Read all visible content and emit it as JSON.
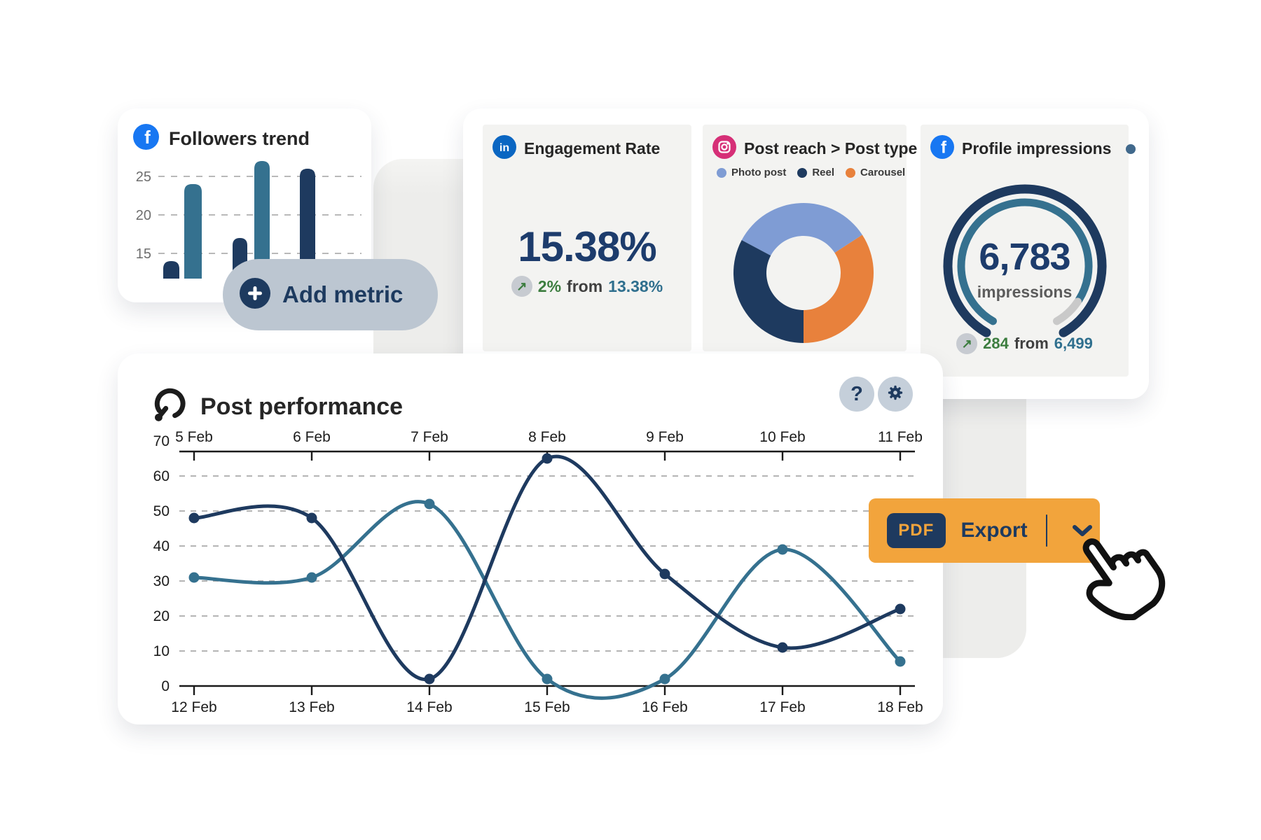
{
  "colors": {
    "navy": "#1e3a5f",
    "teal": "#35718f",
    "light_blue": "#7f9cd4",
    "orange": "#e8813c",
    "export_orange": "#f2a43c",
    "green": "#3c7d3f",
    "teal_text": "#2f6f8e",
    "panel_bg": "#f3f3f1",
    "bg_strip": "#ededeb",
    "pill_bg": "#bcc6d1",
    "facebook_blue": "#1877f2",
    "linkedin_blue": "#0a66c2",
    "instagram_pink": "#d62f77",
    "gauge_rest_gray": "#c9c9c9"
  },
  "followers_card": {
    "title": "Followers trend",
    "platform": "Facebook",
    "chart": {
      "yticks": [
        25,
        20,
        15
      ],
      "bars": [
        {
          "value": 14,
          "color": "#1e3a5f"
        },
        {
          "value": 24,
          "color": "#35718f"
        },
        {
          "value": 17,
          "color": "#1e3a5f"
        },
        {
          "value": 27,
          "color": "#35718f"
        },
        {
          "value": 26,
          "color": "#1e3a5f"
        }
      ]
    }
  },
  "add_metric_button": {
    "label": "Add metric"
  },
  "engagement_card": {
    "title": "Engagement Rate",
    "platform": "LinkedIn",
    "value": "15.38%",
    "change": {
      "arrow": "↗",
      "delta": "2%",
      "joiner": "from",
      "previous": "13.38%"
    }
  },
  "post_reach_card": {
    "title": "Post reach > Post type",
    "platform": "Instagram",
    "legend": [
      {
        "label": "Photo post",
        "color": "#7f9cd4"
      },
      {
        "label": "Reel",
        "color": "#1e3a5f"
      },
      {
        "label": "Carousel",
        "color": "#e8813c"
      }
    ],
    "donut": {
      "segments": [
        {
          "label": "Photo post",
          "color": "#7f9cd4",
          "start": -62,
          "end": 57
        },
        {
          "label": "Carousel",
          "color": "#e8813c",
          "start": 57,
          "end": 180
        },
        {
          "label": "Reel",
          "color": "#1e3a5f",
          "start": 180,
          "end": 298
        }
      ]
    }
  },
  "impressions_card": {
    "title": "Profile impressions",
    "platform": "Facebook",
    "value": "6,783",
    "unit": "impressions",
    "change": {
      "arrow": "↗",
      "delta": "284",
      "joiner": "from",
      "previous": "6,499"
    },
    "gauge": {
      "start": 210,
      "sweep": 300,
      "inner_filled_sweep": 272,
      "outer_color": "#1e3a5f",
      "inner_color": "#35718f",
      "rest_color": "#c9c9c9"
    }
  },
  "post_performance": {
    "title": "Post performance",
    "help_label": "?",
    "top_axis": [
      "5 Feb",
      "6 Feb",
      "7 Feb",
      "8 Feb",
      "9 Feb",
      "10 Feb",
      "11 Feb"
    ],
    "bottom_axis": [
      "12 Feb",
      "13 Feb",
      "14 Feb",
      "15 Feb",
      "16 Feb",
      "17 Feb",
      "18 Feb"
    ],
    "chart": {
      "yticks": [
        0,
        10,
        20,
        30,
        40,
        50,
        60,
        70
      ],
      "series": [
        {
          "name": "series-teal",
          "color": "#35718f",
          "values": [
            31,
            31,
            52,
            2,
            2,
            39,
            7
          ]
        },
        {
          "name": "series-navy",
          "color": "#1e3a5f",
          "values": [
            48,
            48,
            2,
            65,
            32,
            11,
            22
          ]
        }
      ]
    }
  },
  "export_button": {
    "badge": "PDF",
    "label": "Export"
  },
  "chart_data": [
    {
      "id": "followers_trend",
      "type": "bar",
      "title": "Followers trend",
      "platform": "Facebook",
      "categories": [
        "",
        "",
        "",
        "",
        ""
      ],
      "values": [
        14,
        24,
        17,
        27,
        26
      ],
      "bar_colors": [
        "#1e3a5f",
        "#35718f",
        "#1e3a5f",
        "#35718f",
        "#1e3a5f"
      ],
      "yticks": [
        15,
        20,
        25
      ],
      "grid": "dashed-horizontal",
      "xlabel": "",
      "ylabel": ""
    },
    {
      "id": "post_reach_by_post_type",
      "type": "pie",
      "title": "Post reach > Post type",
      "platform": "Instagram",
      "labels": [
        "Photo post",
        "Reel",
        "Carousel"
      ],
      "values_pct": [
        33,
        33,
        34
      ],
      "colors": [
        "#7f9cd4",
        "#1e3a5f",
        "#e8813c"
      ],
      "donut": true,
      "legend_position": "top"
    },
    {
      "id": "profile_impressions",
      "type": "gauge",
      "title": "Profile impressions",
      "platform": "Facebook",
      "value": 6783,
      "unit": "impressions",
      "previous": 6499,
      "delta": 284,
      "fill_fraction": 0.9
    },
    {
      "id": "post_performance",
      "type": "line",
      "title": "Post performance",
      "x_top": [
        "5 Feb",
        "6 Feb",
        "7 Feb",
        "8 Feb",
        "9 Feb",
        "10 Feb",
        "11 Feb"
      ],
      "x_bottom": [
        "12 Feb",
        "13 Feb",
        "14 Feb",
        "15 Feb",
        "16 Feb",
        "17 Feb",
        "18 Feb"
      ],
      "ylim": [
        0,
        70
      ],
      "yticks": [
        0,
        10,
        20,
        30,
        40,
        50,
        60,
        70
      ],
      "series": [
        {
          "name": "series-navy",
          "color": "#1e3a5f",
          "values": [
            48,
            48,
            2,
            65,
            32,
            11,
            22
          ]
        },
        {
          "name": "series-teal",
          "color": "#35718f",
          "values": [
            31,
            31,
            52,
            2,
            2,
            39,
            7
          ]
        }
      ],
      "grid": "dashed-horizontal",
      "legend_position": "none"
    }
  ]
}
